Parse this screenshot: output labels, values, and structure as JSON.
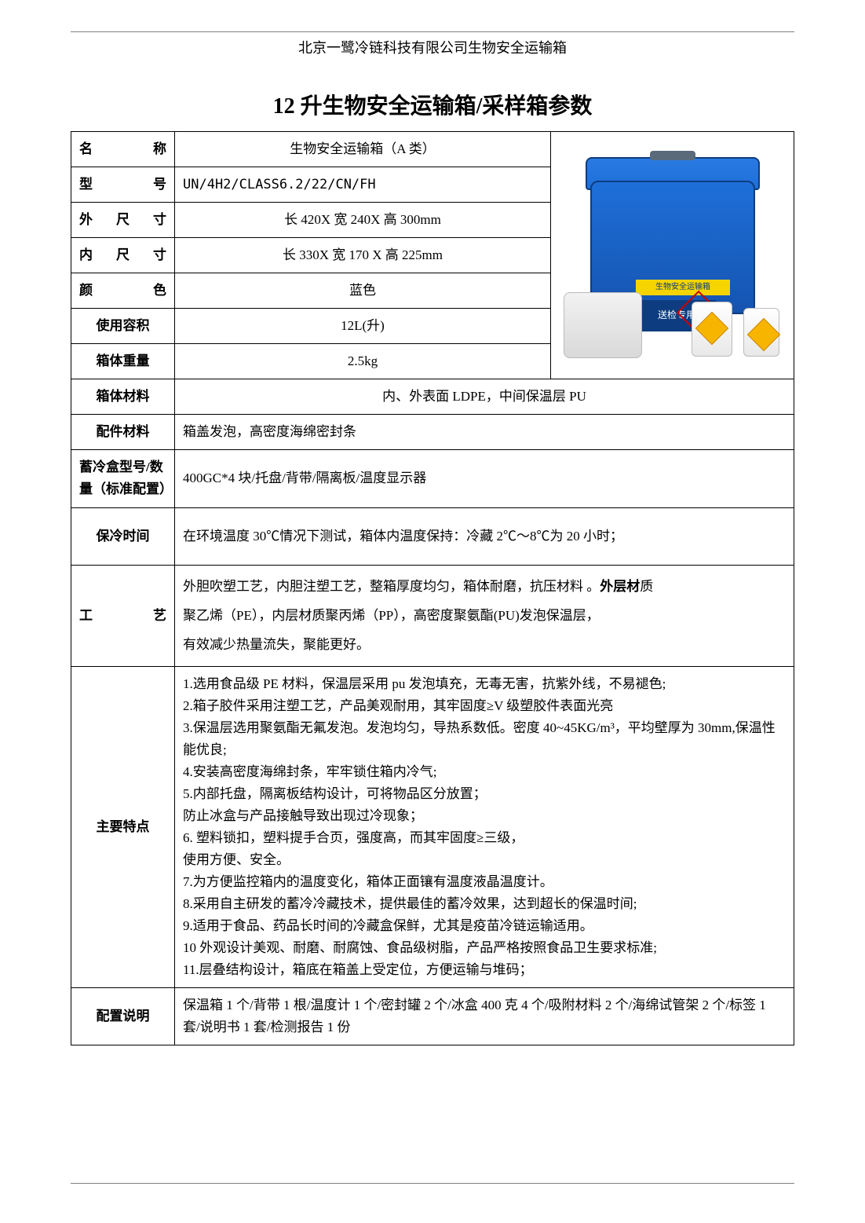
{
  "header": "北京一鹭冷链科技有限公司生物安全运输箱",
  "title": "12 升生物安全运输箱/采样箱参数",
  "labels": {
    "name": "名称",
    "model": "型号",
    "outer": "外尺寸",
    "inner": "内尺寸",
    "color": "颜色",
    "volume": "使用容积",
    "weight": "箱体重量",
    "box_material": "箱体材料",
    "acc_material": "配件材料",
    "cold_box": "蓄冷盒型号/数量（标准配置）",
    "cold_time": "保冷时间",
    "process": "工艺",
    "features": "主要特点",
    "config": "配置说明"
  },
  "values": {
    "name": "生物安全运输箱（A 类）",
    "model": "UN/4H2/CLASS6.2/22/CN/FH",
    "outer": "长 420X 宽 240X 高 300mm",
    "inner": "长 330X 宽 170 X 高 225mm",
    "color": "蓝色",
    "volume": "12L(升)",
    "weight": "2.5kg",
    "box_material": "内、外表面 LDPE，中间保温层 PU",
    "acc_material": "箱盖发泡，高密度海绵密封条",
    "cold_box": "400GC*4 块/托盘/背带/隔离板/温度显示器",
    "cold_time": "在环境温度 30℃情况下测试，箱体内温度保持：冷藏 2℃～8℃为 20 小时；",
    "process_l1_pre": "外胆吹塑工艺，内胆注塑工艺，整箱厚度均匀，箱体耐磨，抗压材料 。",
    "process_l1_bold": "外层材",
    "process_l1_post": "质",
    "process_l2": "聚乙烯（PE），内层材质聚丙烯（PP），高密度聚氨酯(PU)发泡保温层，",
    "process_l3": "有效减少热量流失，聚能更好。",
    "config": "保温箱 1 个/背带 1 根/温度计 1 个/密封罐 2 个/冰盒 400 克 4 个/吸附材料 2 个/海绵试管架 2 个/标签 1 套/说明书 1 套/检测报告 1 份"
  },
  "features": [
    "1.选用食品级 PE 材料，保温层采用 pu 发泡填充，无毒无害，抗紫外线，不易褪色;",
    "2.箱子胶件采用注塑工艺，产品美观耐用，其牢固度≥V 级塑胶件表面光亮",
    "3.保温层选用聚氨酯无氟发泡。发泡均匀，导热系数低。密度 40~45KG/m³，平均壁厚为 30mm,保温性能优良;",
    "4.安装高密度海绵封条，牢牢锁住箱内冷气;",
    "5.内部托盘，隔离板结构设计，可将物品区分放置；",
    "防止冰盒与产品接触导致出现过冷现象；",
    "6. 塑料锁扣，塑料提手合页，强度高，而其牢固度≥三级，",
    "使用方便、安全。",
    "7.为方便监控箱内的温度变化，箱体正面镶有温度液晶温度计。",
    "8.采用自主研发的蓄冷冷藏技术，提供最佳的蓄冷效果，达到超长的保温时间;",
    "9.适用于食品、药品长时间的冷藏盒保鲜，尤其是疫苗冷链运输适用。",
    "10 外观设计美观、耐磨、耐腐蚀、食品级树脂，产品严格按照食品卫生要求标准;",
    "11.层叠结构设计，箱底在箱盖上受定位，方便运输与堆码；"
  ],
  "image": {
    "box_label": "送检专用",
    "yellow_label": "生物安全运输箱"
  },
  "colors": {
    "border": "#000000",
    "box_blue": "#1e6fd9",
    "box_dark": "#0d3d80",
    "yellow": "#f5d400"
  }
}
